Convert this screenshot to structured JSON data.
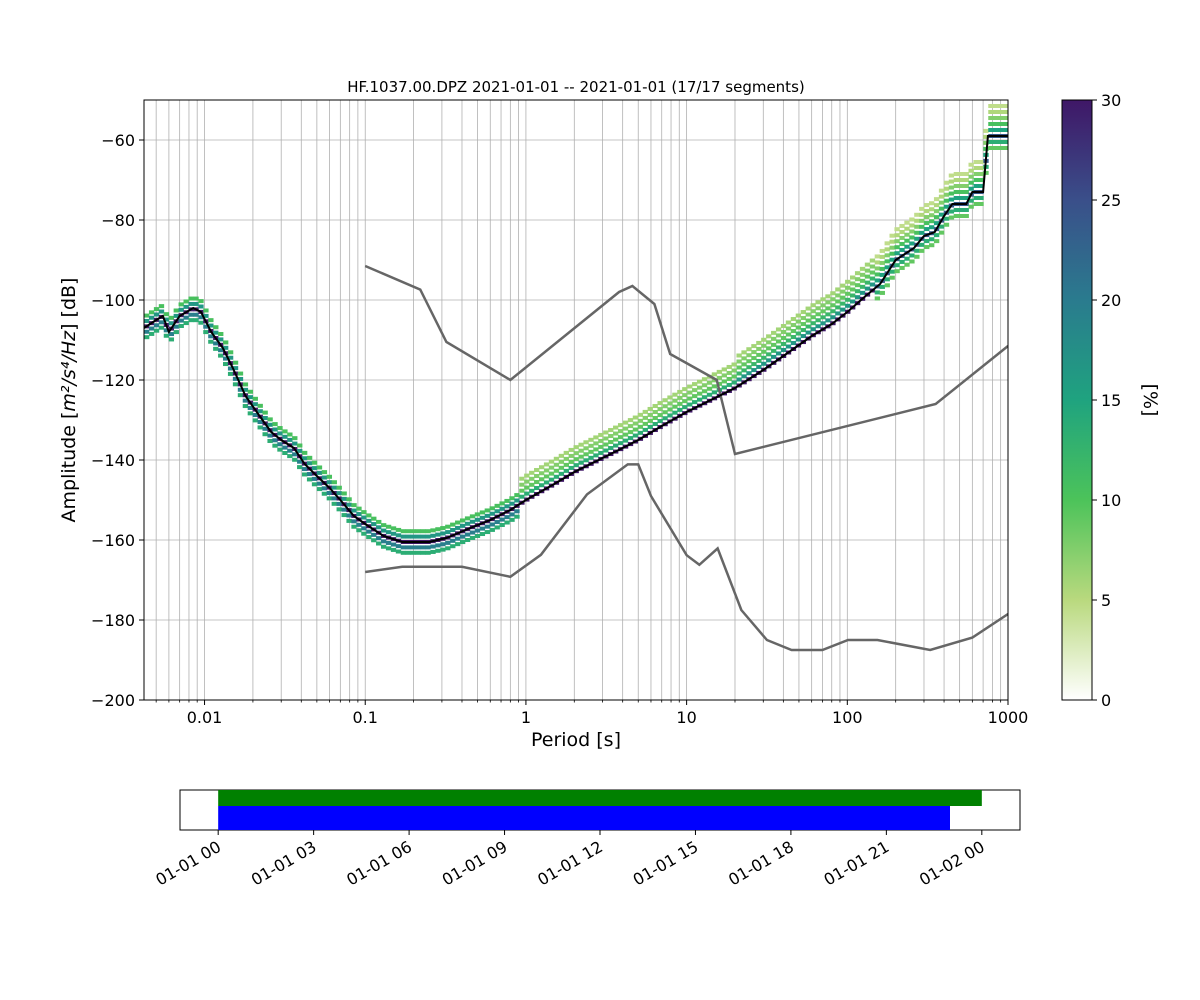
{
  "chart_data": [
    {
      "type": "heatmap",
      "title": "HF.1037.00.DPZ   2021-01-01 -- 2021-01-01  (17/17 segments)",
      "xlabel": "Period [s]",
      "ylabel_main": "Amplitude [",
      "ylabel_math": "m²/s⁴/Hz",
      "ylabel_end": "] [dB]",
      "x_scale": "log",
      "xlim": [
        0.0042,
        1000
      ],
      "ylim": [
        -200,
        -50
      ],
      "grid": true,
      "x_ticks": [
        {
          "value": 0.01,
          "label": "0.01"
        },
        {
          "value": 0.1,
          "label": "0.1"
        },
        {
          "value": 1,
          "label": "1"
        },
        {
          "value": 10,
          "label": "10"
        },
        {
          "value": 100,
          "label": "100"
        },
        {
          "value": 1000,
          "label": "1000"
        }
      ],
      "y_ticks": [
        {
          "value": -200,
          "label": "−200"
        },
        {
          "value": -180,
          "label": "−180"
        },
        {
          "value": -160,
          "label": "−160"
        },
        {
          "value": -140,
          "label": "−140"
        },
        {
          "value": -120,
          "label": "−120"
        },
        {
          "value": -100,
          "label": "−100"
        },
        {
          "value": -80,
          "label": "−80"
        },
        {
          "value": -60,
          "label": "−60"
        }
      ],
      "colorbar": {
        "label": "[%]",
        "range": [
          0,
          30
        ],
        "colormap": [
          "#ffffff",
          "#b9d97e",
          "#4cc35a",
          "#1fa37f",
          "#2a7b8e",
          "#3a4f8a",
          "#3f1767"
        ],
        "ticks": [
          {
            "value": 0,
            "label": "0"
          },
          {
            "value": 5,
            "label": "5"
          },
          {
            "value": 10,
            "label": "10"
          },
          {
            "value": 15,
            "label": "15"
          },
          {
            "value": 20,
            "label": "20"
          },
          {
            "value": 25,
            "label": "25"
          },
          {
            "value": 30,
            "label": "30"
          }
        ]
      },
      "mode_curve": {
        "color": "#000000",
        "points": [
          [
            0.0042,
            -107
          ],
          [
            0.005,
            -105
          ],
          [
            0.0055,
            -104
          ],
          [
            0.006,
            -108
          ],
          [
            0.007,
            -104
          ],
          [
            0.0085,
            -102
          ],
          [
            0.0095,
            -103
          ],
          [
            0.011,
            -108
          ],
          [
            0.013,
            -112
          ],
          [
            0.015,
            -117
          ],
          [
            0.018,
            -124
          ],
          [
            0.022,
            -129
          ],
          [
            0.026,
            -133
          ],
          [
            0.03,
            -135
          ],
          [
            0.036,
            -137
          ],
          [
            0.042,
            -141
          ],
          [
            0.05,
            -144
          ],
          [
            0.06,
            -147
          ],
          [
            0.07,
            -150
          ],
          [
            0.085,
            -154
          ],
          [
            0.1,
            -156
          ],
          [
            0.13,
            -159
          ],
          [
            0.17,
            -160.5
          ],
          [
            0.25,
            -160.5
          ],
          [
            0.32,
            -159.5
          ],
          [
            0.45,
            -157
          ],
          [
            0.6,
            -155
          ],
          [
            0.8,
            -152.5
          ],
          [
            1,
            -150
          ],
          [
            1.5,
            -146
          ],
          [
            2,
            -143
          ],
          [
            3,
            -139.5
          ],
          [
            4,
            -137
          ],
          [
            5,
            -135
          ],
          [
            7,
            -131.5
          ],
          [
            10,
            -128
          ],
          [
            15,
            -124.5
          ],
          [
            20,
            -122
          ],
          [
            30,
            -117.5
          ],
          [
            40,
            -114
          ],
          [
            60,
            -109
          ],
          [
            80,
            -106
          ],
          [
            100,
            -103
          ],
          [
            130,
            -99
          ],
          [
            160,
            -96
          ],
          [
            200,
            -90
          ],
          [
            260,
            -87
          ],
          [
            300,
            -84
          ],
          [
            350,
            -83
          ],
          [
            400,
            -79
          ],
          [
            450,
            -76
          ],
          [
            550,
            -76
          ],
          [
            600,
            -73
          ],
          [
            700,
            -73
          ],
          [
            750,
            -59
          ],
          [
            1000,
            -59
          ]
        ]
      },
      "noise_models": {
        "color": "#666666",
        "high": [
          [
            0.1,
            -91.5
          ],
          [
            0.22,
            -97.4
          ],
          [
            0.32,
            -110.5
          ],
          [
            0.8,
            -120
          ],
          [
            3.8,
            -98
          ],
          [
            4.6,
            -96.5
          ],
          [
            6.3,
            -101
          ],
          [
            7.9,
            -113.5
          ],
          [
            15.4,
            -120
          ],
          [
            20,
            -138.5
          ],
          [
            354.8,
            -126
          ],
          [
            1000,
            -111.5
          ]
        ],
        "low": [
          [
            0.1,
            -168
          ],
          [
            0.17,
            -166.7
          ],
          [
            0.4,
            -166.7
          ],
          [
            0.8,
            -169.2
          ],
          [
            1.24,
            -163.7
          ],
          [
            2.4,
            -148.6
          ],
          [
            4.3,
            -141.1
          ],
          [
            5,
            -141.1
          ],
          [
            6,
            -149
          ],
          [
            10,
            -163.8
          ],
          [
            12,
            -166.2
          ],
          [
            15.6,
            -162.1
          ],
          [
            21.9,
            -177.5
          ],
          [
            31.6,
            -185
          ],
          [
            45,
            -187.5
          ],
          [
            70,
            -187.5
          ],
          [
            101,
            -185
          ],
          [
            154,
            -185
          ],
          [
            328,
            -187.5
          ],
          [
            600,
            -184.4
          ],
          [
            1000,
            -178.5
          ]
        ]
      },
      "distribution": {
        "columns": [
          [
            0.0042,
            -107
          ],
          [
            0.005,
            -105
          ],
          [
            0.0055,
            -104
          ],
          [
            0.006,
            -108
          ],
          [
            0.007,
            -104
          ],
          [
            0.0085,
            -102
          ],
          [
            0.0095,
            -103
          ],
          [
            0.011,
            -108
          ],
          [
            0.013,
            -112
          ],
          [
            0.015,
            -117
          ],
          [
            0.018,
            -124
          ],
          [
            0.022,
            -129
          ],
          [
            0.026,
            -133
          ],
          [
            0.03,
            -135
          ],
          [
            0.036,
            -137
          ],
          [
            0.042,
            -141
          ],
          [
            0.05,
            -144
          ],
          [
            0.06,
            -147
          ],
          [
            0.07,
            -150
          ],
          [
            0.085,
            -154
          ],
          [
            0.1,
            -156
          ],
          [
            0.13,
            -159
          ],
          [
            0.17,
            -160.5
          ],
          [
            0.25,
            -160.5
          ],
          [
            0.32,
            -159.5
          ],
          [
            0.45,
            -157
          ],
          [
            0.6,
            -155
          ],
          [
            0.8,
            -152.5
          ],
          [
            1,
            -150
          ],
          [
            1.5,
            -146
          ],
          [
            2,
            -143
          ],
          [
            3,
            -139.5
          ],
          [
            4,
            -137
          ],
          [
            5,
            -135
          ],
          [
            7,
            -131.5
          ],
          [
            10,
            -128
          ],
          [
            15,
            -124.5
          ],
          [
            20,
            -122
          ],
          [
            30,
            -117.5
          ],
          [
            40,
            -114
          ],
          [
            60,
            -109
          ],
          [
            80,
            -106
          ],
          [
            100,
            -103
          ],
          [
            130,
            -99
          ],
          [
            160,
            -96
          ],
          [
            200,
            -90
          ],
          [
            260,
            -87
          ],
          [
            300,
            -84
          ],
          [
            350,
            -83
          ],
          [
            400,
            -79
          ],
          [
            450,
            -76
          ],
          [
            550,
            -76
          ],
          [
            600,
            -73
          ],
          [
            700,
            -73
          ],
          [
            750,
            -59
          ],
          [
            1000,
            -59
          ]
        ]
      }
    },
    {
      "type": "bar",
      "x_scale": "time",
      "x_ticks": [
        "01-01 00",
        "01-01 03",
        "01-01 06",
        "01-01 09",
        "01-01 12",
        "01-01 15",
        "01-01 18",
        "01-01 21",
        "01-02 00"
      ],
      "x_range_hours": [
        -1.2,
        25.2
      ],
      "series": [
        {
          "color": "#008000",
          "start_hour": 0,
          "end_hour": 24
        },
        {
          "color": "#0000ff",
          "start_hour": 0,
          "end_hour": 23
        }
      ]
    }
  ]
}
